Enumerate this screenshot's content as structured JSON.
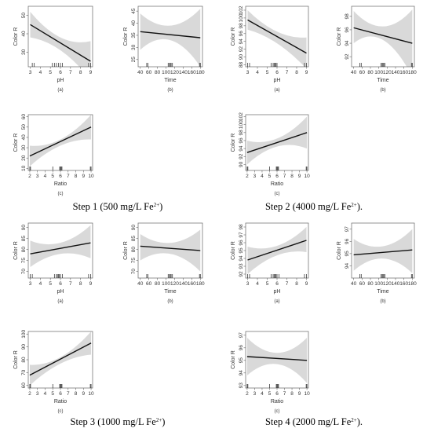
{
  "step_labels": [
    {
      "prefix": "Step 1 (500 mg/L Fe",
      "sup": "2+",
      "suffix": ")"
    },
    {
      "prefix": "Step 2 (4000 mg/L Fe",
      "sup": "2+",
      "suffix": ")."
    },
    {
      "prefix": "Step 3 (1000 mg/L Fe",
      "sup": "2+",
      "suffix": ")"
    },
    {
      "prefix": "Step 4 (2000 mg/L Fe",
      "sup": "2+",
      "suffix": ")."
    }
  ],
  "colors": {
    "band": "#d9d9d9",
    "line": "#111111",
    "frame": "#666666"
  },
  "chart_data": [
    {
      "type": "line",
      "group": 1,
      "sublabel": "(a)",
      "xlabel": "pH",
      "ylabel": "Color R",
      "xlim": [
        2.8,
        9.2
      ],
      "ylim": [
        22,
        55
      ],
      "xticks": [
        3,
        4,
        5,
        6,
        7,
        8,
        9
      ],
      "yticks": [
        30,
        40,
        50
      ],
      "line": [
        [
          3,
          45
        ],
        [
          9,
          25
        ]
      ],
      "band_upper": [
        [
          3,
          52
        ],
        [
          6,
          38
        ],
        [
          9,
          36
        ]
      ],
      "band_lower": [
        [
          3,
          38
        ],
        [
          6,
          31
        ],
        [
          9,
          15
        ]
      ],
      "rug": [
        3.2,
        3.4,
        5.2,
        5.4,
        5.6,
        5.8,
        6.0,
        6.2,
        8.8,
        9.0
      ]
    },
    {
      "type": "line",
      "group": 1,
      "sublabel": "(b)",
      "xlabel": "Time",
      "ylabel": "Color R",
      "xlim": [
        35,
        185
      ],
      "ylim": [
        22,
        47
      ],
      "xticks": [
        40,
        60,
        80,
        100,
        120,
        140,
        160,
        180
      ],
      "yticks": [
        25,
        30,
        35,
        40,
        45
      ],
      "line": [
        [
          40,
          36.5
        ],
        [
          180,
          34
        ]
      ],
      "band_upper": [
        [
          40,
          44
        ],
        [
          110,
          39
        ],
        [
          180,
          46
        ]
      ],
      "band_lower": [
        [
          40,
          29
        ],
        [
          110,
          33
        ],
        [
          180,
          22
        ]
      ],
      "rug": [
        55,
        58,
        105,
        108,
        110,
        112,
        115,
        178,
        180
      ]
    },
    {
      "type": "line",
      "group": 2,
      "sublabel": "(a)",
      "xlabel": "pH",
      "ylabel": "Color R",
      "xlim": [
        2.8,
        9.2
      ],
      "ylim": [
        87.5,
        103
      ],
      "xticks": [
        3,
        4,
        5,
        6,
        7,
        8,
        9
      ],
      "yticks": [
        88,
        90,
        92,
        94,
        96,
        98,
        100,
        102
      ],
      "line": [
        [
          3,
          99.5
        ],
        [
          9,
          91
        ]
      ],
      "band_upper": [
        [
          3,
          102
        ],
        [
          6,
          96.5
        ],
        [
          9,
          95
        ]
      ],
      "band_lower": [
        [
          3,
          97
        ],
        [
          6,
          93.5
        ],
        [
          9,
          87
        ]
      ],
      "rug": [
        3.0,
        3.2,
        5.4,
        5.6,
        5.7,
        5.8,
        5.9,
        6.0,
        8.8,
        9.0
      ]
    },
    {
      "type": "line",
      "group": 2,
      "sublabel": "(b)",
      "xlabel": "Time",
      "ylabel": "Color R",
      "xlim": [
        35,
        185
      ],
      "ylim": [
        90.5,
        99.5
      ],
      "xticks": [
        40,
        60,
        80,
        100,
        120,
        140,
        160,
        180
      ],
      "yticks": [
        92,
        94,
        96,
        98
      ],
      "line": [
        [
          40,
          96.3
        ],
        [
          180,
          94
        ]
      ],
      "band_upper": [
        [
          40,
          98.8
        ],
        [
          110,
          96.5
        ],
        [
          180,
          99
        ]
      ],
      "band_lower": [
        [
          40,
          94
        ],
        [
          110,
          94.5
        ],
        [
          180,
          89
        ]
      ],
      "rug": [
        55,
        58,
        105,
        108,
        110,
        112,
        115,
        178,
        180
      ]
    },
    {
      "type": "line",
      "group": 1,
      "sublabel": "(c)",
      "xlabel": "Ratio",
      "ylabel": "Color R",
      "xlim": [
        1.8,
        10.2
      ],
      "ylim": [
        8,
        62
      ],
      "xticks": [
        2,
        3,
        4,
        5,
        6,
        7,
        8,
        9,
        10
      ],
      "yticks": [
        10,
        20,
        30,
        40,
        50,
        60
      ],
      "line": [
        [
          2,
          22
        ],
        [
          10,
          50
        ]
      ],
      "band_upper": [
        [
          2,
          32
        ],
        [
          6,
          38
        ],
        [
          10,
          62
        ]
      ],
      "band_lower": [
        [
          2,
          12
        ],
        [
          6,
          32
        ],
        [
          10,
          38
        ]
      ],
      "rug": [
        2.0,
        2.1,
        5.0,
        5.9,
        6.0,
        6.1,
        6.2,
        9.9,
        10.0
      ]
    },
    {
      "type": "line",
      "group": 2,
      "sublabel": "(c)",
      "xlabel": "Ratio",
      "ylabel": "Color R",
      "xlim": [
        1.8,
        10.2
      ],
      "ylim": [
        88.5,
        102.5
      ],
      "xticks": [
        2,
        3,
        4,
        5,
        6,
        7,
        8,
        9,
        10
      ],
      "yticks": [
        90,
        92,
        94,
        96,
        98,
        100,
        102
      ],
      "line": [
        [
          2,
          93
        ],
        [
          10,
          98
        ]
      ],
      "band_upper": [
        [
          2,
          96
        ],
        [
          6,
          96.5
        ],
        [
          10,
          102
        ]
      ],
      "band_lower": [
        [
          2,
          90
        ],
        [
          6,
          94.5
        ],
        [
          10,
          94
        ]
      ],
      "rug": [
        2.0,
        2.1,
        5.0,
        5.9,
        6.0,
        6.1,
        6.2,
        9.9,
        10.0
      ]
    },
    {
      "type": "line",
      "group": 3,
      "sublabel": "(a)",
      "xlabel": "pH",
      "ylabel": "Color R",
      "xlim": [
        2.8,
        9.2
      ],
      "ylim": [
        67,
        92
      ],
      "xticks": [
        3,
        4,
        5,
        6,
        7,
        8,
        9
      ],
      "yticks": [
        70,
        75,
        80,
        85,
        90
      ],
      "line": [
        [
          3,
          78
        ],
        [
          9,
          83
        ]
      ],
      "band_upper": [
        [
          3,
          84
        ],
        [
          6,
          83
        ],
        [
          9,
          91
        ]
      ],
      "band_lower": [
        [
          3,
          72
        ],
        [
          6,
          78
        ],
        [
          9,
          76
        ]
      ],
      "rug": [
        3.0,
        3.2,
        5.4,
        5.6,
        5.7,
        5.8,
        5.9,
        6.0,
        6.2,
        8.8,
        9.0
      ]
    },
    {
      "type": "line",
      "group": 3,
      "sublabel": "(b)",
      "xlabel": "Time",
      "ylabel": "Color R",
      "xlim": [
        35,
        185
      ],
      "ylim": [
        67,
        92
      ],
      "xticks": [
        40,
        60,
        80,
        100,
        120,
        140,
        160,
        180
      ],
      "yticks": [
        70,
        75,
        80,
        85,
        90
      ],
      "line": [
        [
          40,
          81.5
        ],
        [
          180,
          79.5
        ]
      ],
      "band_upper": [
        [
          40,
          87
        ],
        [
          110,
          83
        ],
        [
          180,
          89
        ]
      ],
      "band_lower": [
        [
          40,
          75
        ],
        [
          110,
          78
        ],
        [
          180,
          70
        ]
      ],
      "rug": [
        55,
        58,
        105,
        108,
        110,
        112,
        115,
        178,
        180
      ]
    },
    {
      "type": "line",
      "group": 4,
      "sublabel": "(a)",
      "xlabel": "pH",
      "ylabel": "Color R",
      "xlim": [
        2.8,
        9.2
      ],
      "ylim": [
        91.5,
        98.5
      ],
      "xticks": [
        3,
        4,
        5,
        6,
        7,
        8,
        9
      ],
      "yticks": [
        92,
        93,
        94,
        95,
        96,
        97,
        98
      ],
      "line": [
        [
          3,
          93.8
        ],
        [
          9,
          96.3
        ]
      ],
      "band_upper": [
        [
          3,
          95.5
        ],
        [
          6,
          95.6
        ],
        [
          9,
          98
        ]
      ],
      "band_lower": [
        [
          3,
          92
        ],
        [
          6,
          94.4
        ],
        [
          9,
          94.8
        ]
      ],
      "rug": [
        3.0,
        3.2,
        5.4,
        5.6,
        5.7,
        5.8,
        5.9,
        6.0,
        6.2,
        8.8,
        9.0
      ]
    },
    {
      "type": "line",
      "group": 4,
      "sublabel": "(b)",
      "xlabel": "Time",
      "ylabel": "Color R",
      "xlim": [
        35,
        185
      ],
      "ylim": [
        93,
        97.5
      ],
      "xticks": [
        40,
        60,
        80,
        100,
        120,
        140,
        160,
        180
      ],
      "yticks": [
        94,
        95,
        96,
        97
      ],
      "line": [
        [
          40,
          94.9
        ],
        [
          180,
          95.3
        ]
      ],
      "band_upper": [
        [
          40,
          96.2
        ],
        [
          110,
          95.6
        ],
        [
          180,
          97
        ]
      ],
      "band_lower": [
        [
          40,
          93.6
        ],
        [
          110,
          94.6
        ],
        [
          180,
          93.4
        ]
      ],
      "rug": [
        55,
        58,
        105,
        108,
        110,
        112,
        115,
        178,
        180
      ]
    },
    {
      "type": "line",
      "group": 3,
      "sublabel": "(c)",
      "xlabel": "Ratio",
      "ylabel": "Color R",
      "xlim": [
        1.8,
        10.2
      ],
      "ylim": [
        58,
        102
      ],
      "xticks": [
        2,
        3,
        4,
        5,
        6,
        7,
        8,
        9,
        10
      ],
      "yticks": [
        60,
        70,
        80,
        90,
        100
      ],
      "line": [
        [
          2,
          68
        ],
        [
          10,
          93
        ]
      ],
      "band_upper": [
        [
          2,
          76
        ],
        [
          6,
          82
        ],
        [
          10,
          102
        ]
      ],
      "band_lower": [
        [
          2,
          60
        ],
        [
          6,
          77
        ],
        [
          10,
          84
        ]
      ],
      "rug": [
        2.0,
        2.1,
        5.0,
        5.9,
        6.0,
        6.1,
        6.2,
        9.9,
        10.0
      ]
    },
    {
      "type": "line",
      "group": 4,
      "sublabel": "(c)",
      "xlabel": "Ratio",
      "ylabel": "Color R",
      "xlim": [
        1.8,
        10.2
      ],
      "ylim": [
        92.8,
        97.3
      ],
      "xticks": [
        2,
        3,
        4,
        5,
        6,
        7,
        8,
        9,
        10
      ],
      "yticks": [
        93,
        94,
        95,
        96,
        97
      ],
      "line": [
        [
          2,
          95.3
        ],
        [
          10,
          95
        ]
      ],
      "band_upper": [
        [
          2,
          96.8
        ],
        [
          6,
          95.6
        ],
        [
          10,
          96.8
        ]
      ],
      "band_lower": [
        [
          2,
          93.8
        ],
        [
          6,
          94.7
        ],
        [
          10,
          93.2
        ]
      ],
      "rug": [
        2.0,
        2.1,
        5.0,
        5.9,
        6.0,
        6.1,
        6.2,
        9.9,
        10.0
      ]
    }
  ]
}
